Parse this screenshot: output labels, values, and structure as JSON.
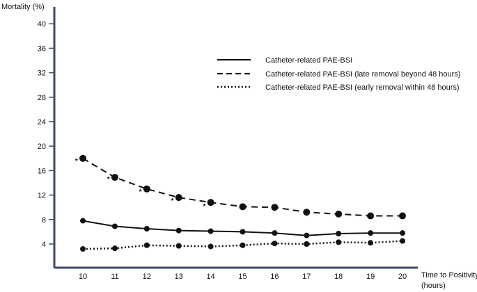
{
  "chart_data": {
    "type": "line",
    "ylabel": "Mortality (%)",
    "xlabel": "Time to Positivity (hours)",
    "xlabel_lines": [
      "Time to Positivity",
      "(hours)"
    ],
    "x": [
      10,
      11,
      12,
      13,
      14,
      15,
      16,
      17,
      18,
      19,
      20
    ],
    "xlim": [
      9,
      21
    ],
    "ylim": [
      2,
      43
    ],
    "yticks": [
      4,
      8,
      12,
      16,
      20,
      24,
      28,
      32,
      36,
      40
    ],
    "grid": false,
    "legend_position": "top-right",
    "series": [
      {
        "name": "Catheter-related PAE-BSI",
        "style": "solid",
        "values": [
          7.8,
          6.9,
          6.5,
          6.2,
          6.1,
          6.0,
          5.8,
          5.4,
          5.7,
          5.8,
          5.8
        ]
      },
      {
        "name": "Catheter-related PAE-BSI (late removal beyond 48 hours)",
        "style": "dashed",
        "values": [
          18.0,
          14.9,
          13.0,
          11.6,
          10.8,
          10.1,
          10.0,
          9.2,
          8.9,
          8.6,
          8.6
        ]
      },
      {
        "name": "Catheter-related PAE-BSI (early removal within 48 hours)",
        "style": "dotted",
        "values": [
          3.2,
          3.3,
          3.8,
          3.7,
          3.6,
          3.8,
          4.1,
          4.0,
          4.3,
          4.2,
          4.5
        ]
      }
    ],
    "annotations": [
      {
        "text": "*",
        "x": 9.8,
        "y": 17.2
      },
      {
        "text": "*",
        "x": 10.8,
        "y": 14.2
      },
      {
        "text": "*",
        "x": 11.8,
        "y": 12.2
      },
      {
        "text": "*",
        "x": 12.8,
        "y": 10.7
      },
      {
        "text": "*",
        "x": 13.8,
        "y": 9.8
      }
    ],
    "colors": {
      "line": "#111111",
      "axis": "#3b4a66"
    }
  }
}
